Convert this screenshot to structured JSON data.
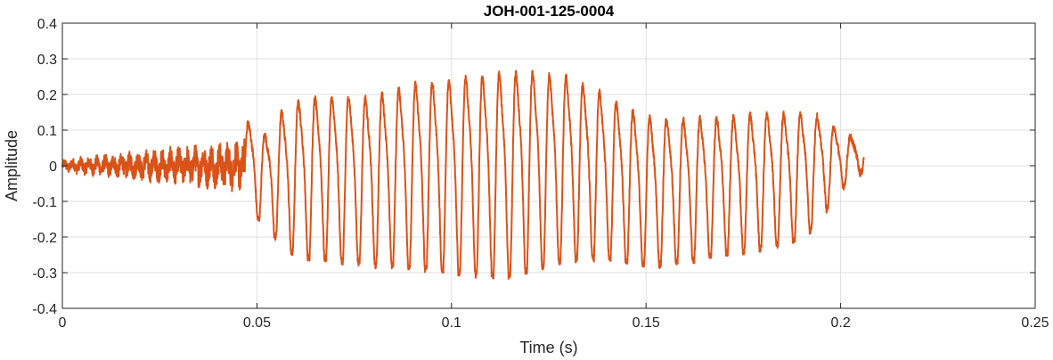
{
  "chart_data": {
    "type": "line",
    "title": "JOH-001-125-0004",
    "xlabel": "Time (s)",
    "ylabel": "Amplitude",
    "xlim": [
      0,
      0.25
    ],
    "ylim": [
      -0.4,
      0.4
    ],
    "grid": true,
    "x_ticks": [
      0,
      0.05,
      0.1,
      0.15,
      0.2,
      0.25
    ],
    "x_tick_labels": [
      "0",
      "0.05",
      "0.1",
      "0.15",
      "0.2",
      "0.25"
    ],
    "y_ticks": [
      0.4,
      0.3,
      0.2,
      0.1,
      0,
      -0.1,
      -0.2,
      -0.3,
      -0.4
    ],
    "y_tick_labels": [
      "0.4",
      "0.3",
      "0.2",
      "0.1",
      "0",
      "-0.1",
      "-0.2",
      "-0.3",
      "-0.4"
    ],
    "series": [
      {
        "color": "#d95319",
        "x_range": [
          0,
          0.206
        ],
        "waveform": {
          "noise_segment": [
            0,
            0.047
          ],
          "cycle_period": 0.0043,
          "cycle_peaks": [
            [
              0.0485,
              0.14,
              -0.14
            ],
            [
              0.0525,
              0.1,
              -0.16
            ],
            [
              0.0565,
              0.18,
              -0.23
            ],
            [
              0.0605,
              0.21,
              -0.25
            ],
            [
              0.0645,
              0.22,
              -0.26
            ],
            [
              0.0685,
              0.22,
              -0.26
            ],
            [
              0.0725,
              0.23,
              -0.27
            ],
            [
              0.0765,
              0.22,
              -0.27
            ],
            [
              0.0805,
              0.23,
              -0.28
            ],
            [
              0.0845,
              0.24,
              -0.28
            ],
            [
              0.0885,
              0.26,
              -0.28
            ],
            [
              0.0925,
              0.27,
              -0.29
            ],
            [
              0.0965,
              0.27,
              -0.29
            ],
            [
              0.1005,
              0.28,
              -0.3
            ],
            [
              0.1045,
              0.29,
              -0.3
            ],
            [
              0.1085,
              0.29,
              -0.31
            ],
            [
              0.1125,
              0.3,
              -0.31
            ],
            [
              0.1165,
              0.3,
              -0.31
            ],
            [
              0.1205,
              0.3,
              -0.29
            ],
            [
              0.1245,
              0.29,
              -0.28
            ],
            [
              0.1285,
              0.29,
              -0.27
            ],
            [
              0.1325,
              0.27,
              -0.26
            ],
            [
              0.1365,
              0.25,
              -0.26
            ],
            [
              0.1405,
              0.22,
              -0.26
            ],
            [
              0.1445,
              0.2,
              -0.27
            ],
            [
              0.1485,
              0.17,
              -0.28
            ],
            [
              0.1525,
              0.16,
              -0.28
            ],
            [
              0.1565,
              0.16,
              -0.27
            ],
            [
              0.1605,
              0.16,
              -0.27
            ],
            [
              0.1645,
              0.16,
              -0.26
            ],
            [
              0.1685,
              0.16,
              -0.25
            ],
            [
              0.1725,
              0.16,
              -0.24
            ],
            [
              0.1765,
              0.17,
              -0.24
            ],
            [
              0.1805,
              0.17,
              -0.23
            ],
            [
              0.1845,
              0.17,
              -0.22
            ],
            [
              0.1885,
              0.17,
              -0.21
            ],
            [
              0.1925,
              0.17,
              -0.18
            ],
            [
              0.1965,
              0.14,
              -0.12
            ],
            [
              0.2005,
              0.1,
              -0.06
            ],
            [
              0.2045,
              0.08,
              -0.02
            ]
          ]
        }
      }
    ]
  }
}
